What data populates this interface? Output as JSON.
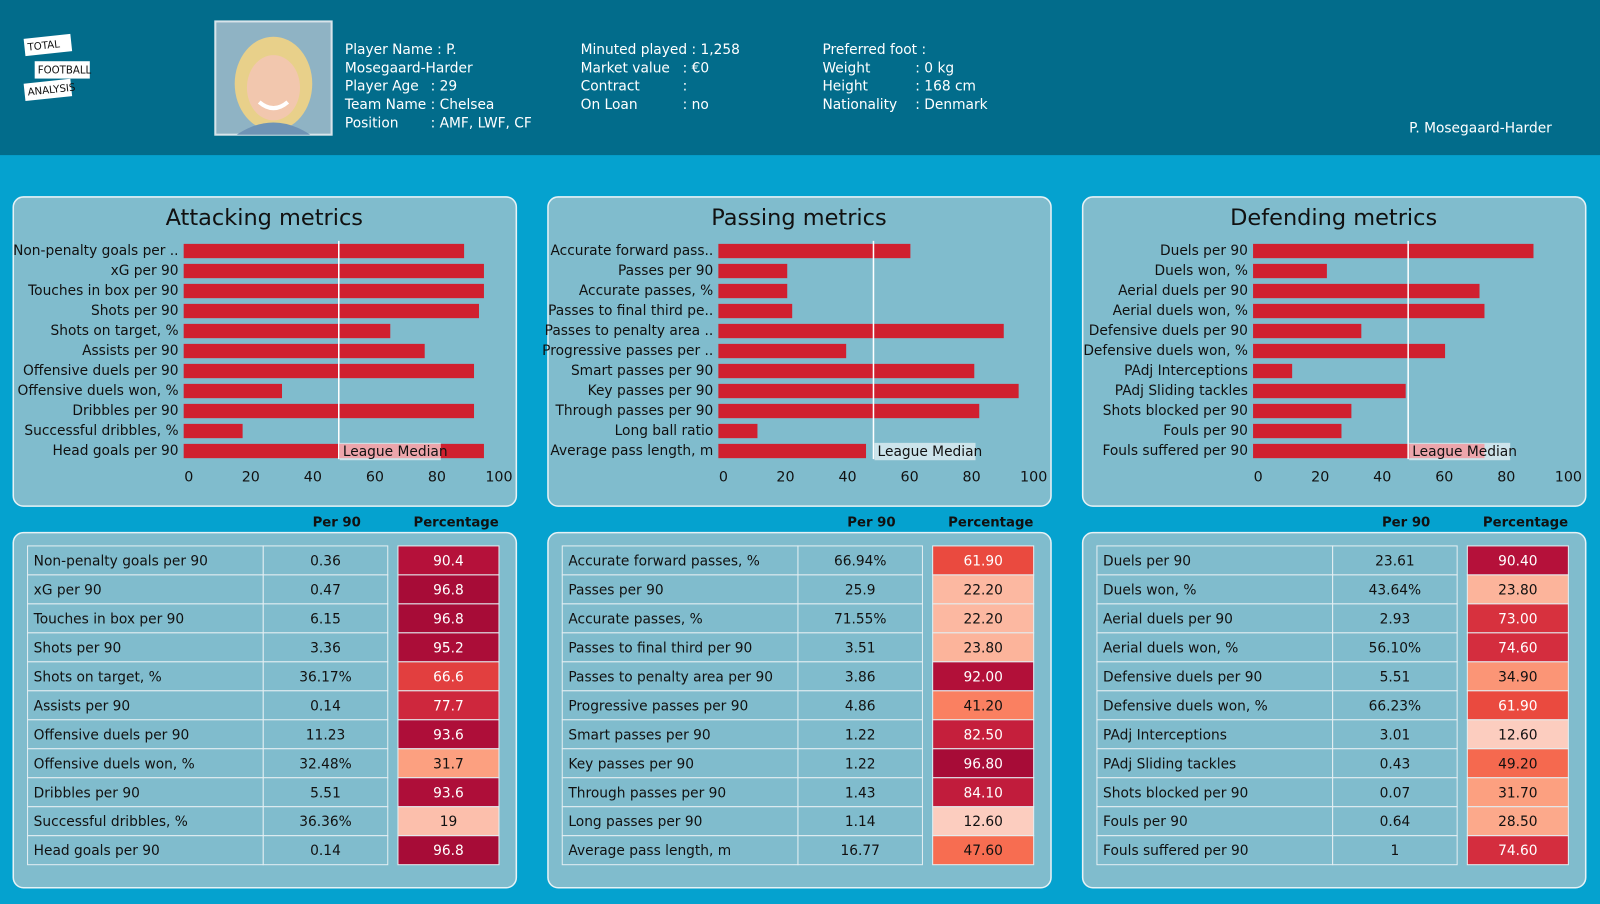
{
  "header": {
    "logo": [
      "TOTAL",
      "FOOTBALL",
      "ANALYSIS"
    ],
    "columns": [
      [
        [
          "Player Name : P."
        ],
        [
          "Mosegaard-Harder"
        ],
        [
          "Player Age",
          ": 29"
        ],
        [
          "Team Name : Chelsea"
        ],
        [
          "Position",
          ": AMF, LWF, CF"
        ]
      ],
      [
        [
          "Minuted played : 1,258"
        ],
        [
          "Market value",
          ": €0"
        ],
        [
          "Contract",
          ":"
        ],
        [
          "On Loan",
          ": no"
        ]
      ],
      [
        [
          "Preferred foot :"
        ],
        [
          "Weight",
          ": 0 kg"
        ],
        [
          "Height",
          ": 168 cm"
        ],
        [
          "Nationality",
          ": Denmark"
        ]
      ]
    ],
    "name": "P. Mosegaard-Harder"
  },
  "chart_data": [
    {
      "type": "bar",
      "orientation": "horizontal",
      "title": "Attacking metrics",
      "color": "#d0202f",
      "categories": [
        "Non-penalty goals per ..",
        "xG per 90",
        "Touches in box per 90",
        "Shots per 90",
        "Shots on target, %",
        "Assists per 90",
        "Offensive duels per 90",
        "Offensive duels won, %",
        "Dribbles per 90",
        "Successful dribbles, %",
        "Head goals per 90"
      ],
      "values": [
        90.4,
        96.8,
        96.8,
        95.2,
        66.6,
        77.7,
        93.6,
        31.7,
        93.6,
        19,
        96.8
      ],
      "xlim": [
        0,
        100
      ],
      "xticks": [
        0,
        20,
        40,
        60,
        80,
        100
      ],
      "median": 50,
      "median_label": "League Median"
    },
    {
      "type": "bar",
      "orientation": "horizontal",
      "title": "Passing metrics",
      "color": "#d0202f",
      "categories": [
        "Accurate forward pass..",
        "Passes per 90",
        "Accurate passes, %",
        "Passes to final third pe..",
        "Passes to penalty area ..",
        "Progressive passes per ..",
        "Smart passes per 90",
        "Key passes per 90",
        "Through passes per 90",
        "Long ball ratio",
        "Average pass length, m"
      ],
      "values": [
        61.9,
        22.2,
        22.2,
        23.8,
        92.0,
        41.2,
        82.5,
        96.8,
        84.1,
        12.6,
        47.6
      ],
      "xlim": [
        0,
        100
      ],
      "xticks": [
        0,
        20,
        40,
        60,
        80,
        100
      ],
      "median": 50,
      "median_label": "League Median"
    },
    {
      "type": "bar",
      "orientation": "horizontal",
      "title": "Defending metrics",
      "color": "#d0202f",
      "categories": [
        "Duels per 90",
        "Duels won, %",
        "Aerial duels per 90",
        "Aerial duels won, %",
        "Defensive duels per 90",
        "Defensive duels won, %",
        "PAdj Interceptions",
        "PAdj Sliding tackles",
        "Shots blocked per 90",
        "Fouls per 90",
        "Fouls suffered per 90"
      ],
      "values": [
        90.4,
        23.8,
        73.0,
        74.6,
        34.9,
        61.9,
        12.6,
        49.2,
        31.7,
        28.5,
        74.6
      ],
      "xlim": [
        0,
        100
      ],
      "xticks": [
        0,
        20,
        40,
        60,
        80,
        100
      ],
      "median": 50,
      "median_label": "League Median"
    }
  ],
  "tables": [
    {
      "header": [
        "Per 90",
        "Percentage"
      ],
      "rows": [
        [
          "Non-penalty goals per 90",
          "0.36",
          "90.4"
        ],
        [
          "xG per 90",
          "0.47",
          "96.8"
        ],
        [
          "Touches in box per 90",
          "6.15",
          "96.8"
        ],
        [
          "Shots per 90",
          "3.36",
          "95.2"
        ],
        [
          "Shots on target, %",
          "36.17%",
          "66.6"
        ],
        [
          "Assists per 90",
          "0.14",
          "77.7"
        ],
        [
          "Offensive duels per 90",
          "11.23",
          "93.6"
        ],
        [
          "Offensive duels won, %",
          "32.48%",
          "31.7"
        ],
        [
          "Dribbles per 90",
          "5.51",
          "93.6"
        ],
        [
          "Successful dribbles, %",
          "36.36%",
          "19"
        ],
        [
          "Head goals per 90",
          "0.14",
          "96.8"
        ]
      ]
    },
    {
      "header": [
        "Per 90",
        "Percentage"
      ],
      "rows": [
        [
          "Accurate forward passes, %",
          "66.94%",
          "61.90"
        ],
        [
          "Passes per 90",
          "25.9",
          "22.20"
        ],
        [
          "Accurate passes, %",
          "71.55%",
          "22.20"
        ],
        [
          "Passes to final third per 90",
          "3.51",
          "23.80"
        ],
        [
          "Passes to penalty area per 90",
          "3.86",
          "92.00"
        ],
        [
          "Progressive passes per 90",
          "4.86",
          "41.20"
        ],
        [
          "Smart passes per 90",
          "1.22",
          "82.50"
        ],
        [
          "Key passes per 90",
          "1.22",
          "96.80"
        ],
        [
          "Through passes per 90",
          "1.43",
          "84.10"
        ],
        [
          "Long passes per 90",
          "1.14",
          "12.60"
        ],
        [
          "Average pass length, m",
          "16.77",
          "47.60"
        ]
      ]
    },
    {
      "header": [
        "Per 90",
        "Percentage"
      ],
      "rows": [
        [
          "Duels per 90",
          "23.61",
          "90.40"
        ],
        [
          "Duels won, %",
          "43.64%",
          "23.80"
        ],
        [
          "Aerial duels per 90",
          "2.93",
          "73.00"
        ],
        [
          "Aerial duels won, %",
          "56.10%",
          "74.60"
        ],
        [
          "Defensive duels per 90",
          "5.51",
          "34.90"
        ],
        [
          "Defensive duels won, %",
          "66.23%",
          "61.90"
        ],
        [
          "PAdj Interceptions",
          "3.01",
          "12.60"
        ],
        [
          "PAdj Sliding tackles",
          "0.43",
          "49.20"
        ],
        [
          "Shots blocked per 90",
          "0.07",
          "31.70"
        ],
        [
          "Fouls per 90",
          "0.64",
          "28.50"
        ],
        [
          "Fouls suffered per 90",
          "1",
          "74.60"
        ]
      ]
    }
  ]
}
